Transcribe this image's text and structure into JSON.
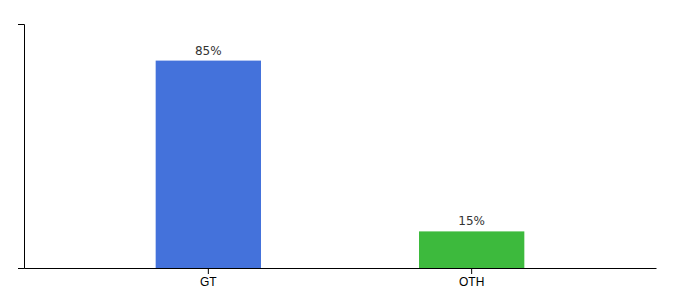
{
  "chart_data": {
    "type": "bar",
    "categories": [
      "GT",
      "OTH"
    ],
    "values": [
      85,
      15
    ],
    "value_labels": [
      "85%",
      "15%"
    ],
    "colors": [
      "#4472db",
      "#3dba3d"
    ],
    "ylim": [
      0,
      100
    ],
    "yticks": [],
    "data_labels": true,
    "tick_labels": "x",
    "grid": false
  }
}
